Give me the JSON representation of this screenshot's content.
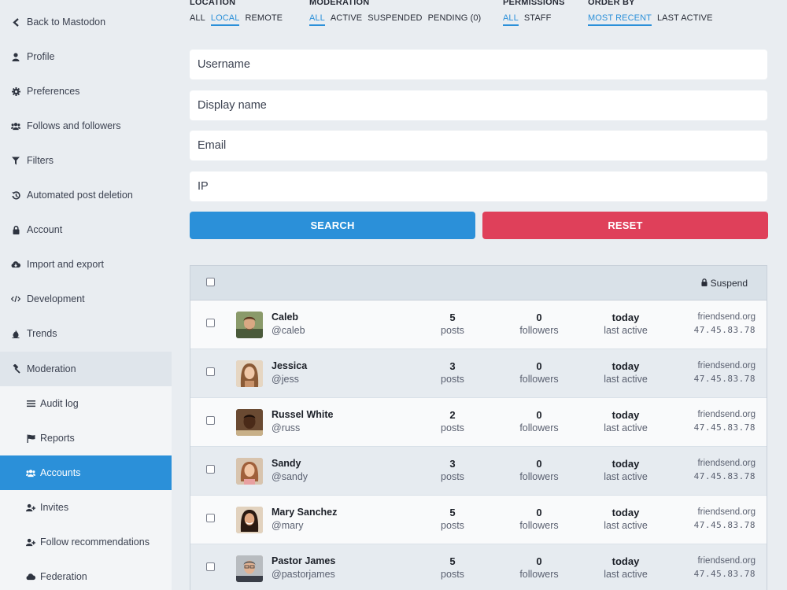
{
  "sidebar": {
    "items": [
      {
        "label": "Back to Mastodon",
        "icon": "chevron-left-icon"
      },
      {
        "label": "Profile",
        "icon": "user-icon"
      },
      {
        "label": "Preferences",
        "icon": "gear-icon"
      },
      {
        "label": "Follows and followers",
        "icon": "users-icon"
      },
      {
        "label": "Filters",
        "icon": "filter-icon"
      },
      {
        "label": "Automated post deletion",
        "icon": "history-icon"
      },
      {
        "label": "Account",
        "icon": "lock-icon"
      },
      {
        "label": "Import and export",
        "icon": "cloud-download-icon"
      },
      {
        "label": "Development",
        "icon": "code-icon"
      },
      {
        "label": "Trends",
        "icon": "fire-icon"
      },
      {
        "label": "Moderation",
        "icon": "gavel-icon"
      }
    ],
    "subitems": [
      {
        "label": "Audit log",
        "icon": "list-icon"
      },
      {
        "label": "Reports",
        "icon": "flag-icon"
      },
      {
        "label": "Accounts",
        "icon": "users-icon"
      },
      {
        "label": "Invites",
        "icon": "user-plus-icon"
      },
      {
        "label": "Follow recommendations",
        "icon": "user-plus-icon"
      },
      {
        "label": "Federation",
        "icon": "cloud-icon"
      }
    ]
  },
  "filters": {
    "location": {
      "title": "Location",
      "options": [
        "All",
        "Local",
        "Remote"
      ],
      "selected": "Local"
    },
    "moderation": {
      "title": "Moderation",
      "options": [
        "All",
        "Active",
        "Suspended",
        "Pending (0)"
      ],
      "selected": "All"
    },
    "permissions": {
      "title": "Permissions",
      "options": [
        "All",
        "Staff"
      ],
      "selected": "All"
    },
    "order": {
      "title": "Order by",
      "options": [
        "Most recent",
        "Last active"
      ],
      "selected": "Most recent"
    }
  },
  "form": {
    "username_placeholder": "Username",
    "display_name_placeholder": "Display name",
    "email_placeholder": "Email",
    "ip_placeholder": "IP",
    "search_label": "Search",
    "reset_label": "Reset"
  },
  "table": {
    "suspend_label": "Suspend",
    "posts_label": "posts",
    "followers_label": "followers",
    "last_active_label": "last active",
    "rows": [
      {
        "name": "Caleb",
        "handle": "@caleb",
        "posts": "5",
        "followers": "0",
        "active": "today",
        "domain": "friendsend.org",
        "ip": "47.45.83.78"
      },
      {
        "name": "Jessica",
        "handle": "@jess",
        "posts": "3",
        "followers": "0",
        "active": "today",
        "domain": "friendsend.org",
        "ip": "47.45.83.78"
      },
      {
        "name": "Russel White",
        "handle": "@russ",
        "posts": "2",
        "followers": "0",
        "active": "today",
        "domain": "friendsend.org",
        "ip": "47.45.83.78"
      },
      {
        "name": "Sandy",
        "handle": "@sandy",
        "posts": "3",
        "followers": "0",
        "active": "today",
        "domain": "friendsend.org",
        "ip": "47.45.83.78"
      },
      {
        "name": "Mary Sanchez",
        "handle": "@mary",
        "posts": "5",
        "followers": "0",
        "active": "today",
        "domain": "friendsend.org",
        "ip": "47.45.83.78"
      },
      {
        "name": "Pastor James",
        "handle": "@pastorjames",
        "posts": "5",
        "followers": "0",
        "active": "today",
        "domain": "friendsend.org",
        "ip": "47.45.83.78"
      }
    ]
  },
  "colors": {
    "accent": "#2b90d9",
    "danger": "#df405a"
  }
}
